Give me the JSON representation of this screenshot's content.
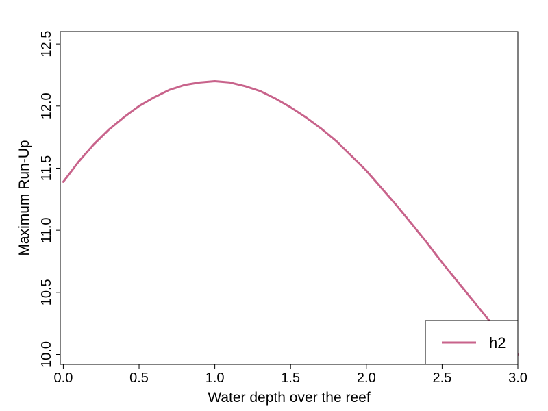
{
  "chart_data": {
    "type": "line",
    "title": "",
    "xlabel": "Water depth over the reef",
    "ylabel": "Maximum Run-Up",
    "xlim": [
      -0.02,
      3.0
    ],
    "ylim": [
      9.92,
      12.6
    ],
    "xticks": [
      0.0,
      0.5,
      1.0,
      1.5,
      2.0,
      2.5,
      3.0
    ],
    "xtick_labels": [
      "0.0",
      "0.5",
      "1.0",
      "1.5",
      "2.0",
      "2.5",
      "3.0"
    ],
    "yticks": [
      10.0,
      10.5,
      11.0,
      11.5,
      12.0,
      12.5
    ],
    "ytick_labels": [
      "10.0",
      "10.5",
      "11.0",
      "11.5",
      "12.0",
      "12.5"
    ],
    "grid": false,
    "legend_position": "bottom-right",
    "series": [
      {
        "name": "h2",
        "color": "#c8638b",
        "x": [
          0.0,
          0.1,
          0.2,
          0.3,
          0.4,
          0.5,
          0.6,
          0.7,
          0.8,
          0.9,
          1.0,
          1.1,
          1.2,
          1.3,
          1.4,
          1.5,
          1.6,
          1.7,
          1.8,
          1.9,
          2.0,
          2.1,
          2.2,
          2.3,
          2.4,
          2.5,
          2.6,
          2.7,
          2.8,
          2.9,
          3.0
        ],
        "y": [
          11.39,
          11.55,
          11.69,
          11.81,
          11.91,
          12.0,
          12.07,
          12.13,
          12.17,
          12.19,
          12.2,
          12.19,
          12.16,
          12.12,
          12.06,
          11.99,
          11.91,
          11.82,
          11.72,
          11.6,
          11.48,
          11.34,
          11.2,
          11.05,
          10.9,
          10.74,
          10.59,
          10.44,
          10.29,
          10.13,
          10.0
        ]
      }
    ]
  }
}
